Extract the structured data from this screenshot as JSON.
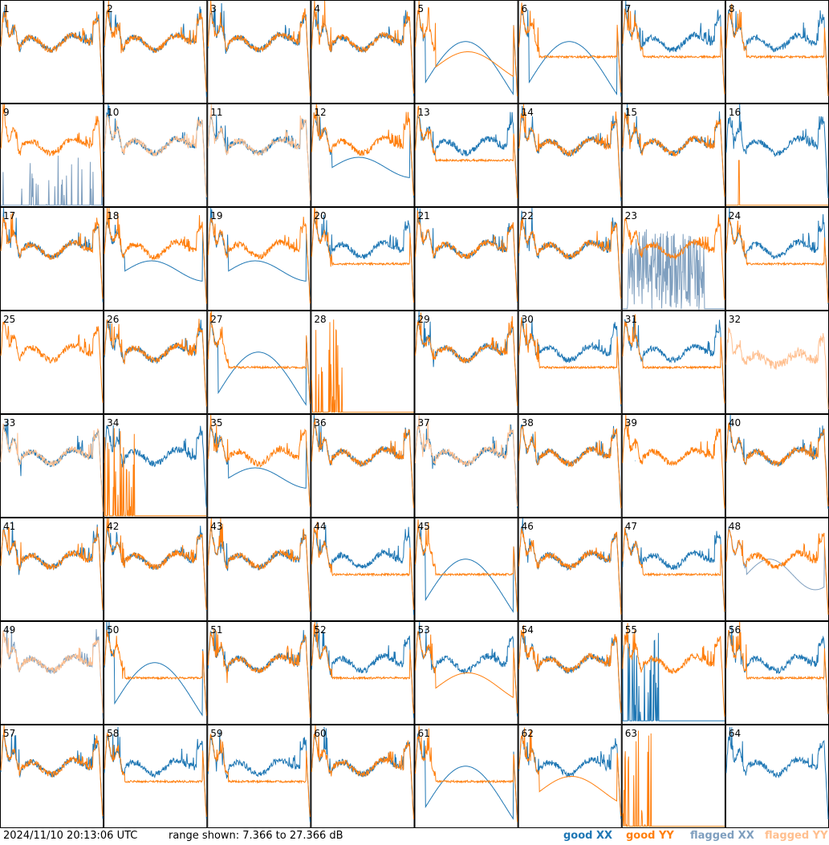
{
  "chart_data": {
    "type": "line",
    "title": "",
    "layout": {
      "rows": 8,
      "cols": 8
    },
    "panels": [
      {
        "n": "1",
        "xx": "good",
        "yy": "good",
        "profile": "spiky-flat-drop"
      },
      {
        "n": "2",
        "xx": "good",
        "yy": "good",
        "profile": "normal"
      },
      {
        "n": "3",
        "xx": "good",
        "yy": "good",
        "profile": "normal"
      },
      {
        "n": "4",
        "xx": "good",
        "yy": "good",
        "profile": "normal"
      },
      {
        "n": "5",
        "xx": "good",
        "yy": "good",
        "profile": "yy-low-xx-dip"
      },
      {
        "n": "6",
        "xx": "good",
        "yy": "good",
        "profile": "xx-dip-hump"
      },
      {
        "n": "7",
        "xx": "good",
        "yy": "good",
        "profile": "yy-below"
      },
      {
        "n": "8",
        "xx": "good",
        "yy": "good",
        "profile": "yy-below"
      },
      {
        "n": "9",
        "xx": "flagged",
        "yy": "good",
        "profile": "xx-flagged-low"
      },
      {
        "n": "10",
        "xx": "good",
        "yy": "flagged",
        "profile": "yy-flagged"
      },
      {
        "n": "11",
        "xx": "good",
        "yy": "flagged",
        "profile": "yy-flagged"
      },
      {
        "n": "12",
        "xx": "good",
        "yy": "good",
        "profile": "xx-below-drop"
      },
      {
        "n": "13",
        "xx": "good",
        "yy": "good",
        "profile": "yy-below"
      },
      {
        "n": "14",
        "xx": "good",
        "yy": "good",
        "profile": "normal"
      },
      {
        "n": "15",
        "xx": "good",
        "yy": "good",
        "profile": "normal"
      },
      {
        "n": "16",
        "xx": "good",
        "yy": "good",
        "profile": "yy-absent"
      },
      {
        "n": "17",
        "xx": "good",
        "yy": "good",
        "profile": "normal"
      },
      {
        "n": "18",
        "xx": "good",
        "yy": "good",
        "profile": "xx-below-drop"
      },
      {
        "n": "19",
        "xx": "good",
        "yy": "good",
        "profile": "xx-below-drop"
      },
      {
        "n": "20",
        "xx": "good",
        "yy": "good",
        "profile": "yy-below"
      },
      {
        "n": "21",
        "xx": "good",
        "yy": "good",
        "profile": "normal"
      },
      {
        "n": "22",
        "xx": "good",
        "yy": "good",
        "profile": "normal"
      },
      {
        "n": "23",
        "xx": "flagged",
        "yy": "good",
        "profile": "xx-flagged-noisy"
      },
      {
        "n": "24",
        "xx": "good",
        "yy": "good",
        "profile": "yy-below"
      },
      {
        "n": "25",
        "xx": "good",
        "yy": "good",
        "profile": "yy-only"
      },
      {
        "n": "26",
        "xx": "good",
        "yy": "good",
        "profile": "normal"
      },
      {
        "n": "27",
        "xx": "good",
        "yy": "good",
        "profile": "xx-dip-hump"
      },
      {
        "n": "28",
        "xx": "good",
        "yy": "good",
        "profile": "yy-spikes-only"
      },
      {
        "n": "29",
        "xx": "good",
        "yy": "good",
        "profile": "normal"
      },
      {
        "n": "30",
        "xx": "good",
        "yy": "good",
        "profile": "yy-below"
      },
      {
        "n": "31",
        "xx": "good",
        "yy": "good",
        "profile": "yy-below"
      },
      {
        "n": "32",
        "xx": "good",
        "yy": "flagged",
        "profile": "yy-flagged-only"
      },
      {
        "n": "33",
        "xx": "good",
        "yy": "flagged",
        "profile": "yy-flagged"
      },
      {
        "n": "34",
        "xx": "good",
        "yy": "good",
        "profile": "yy-low-spikes"
      },
      {
        "n": "35",
        "xx": "good",
        "yy": "good",
        "profile": "xx-below-drop"
      },
      {
        "n": "36",
        "xx": "good",
        "yy": "good",
        "profile": "normal"
      },
      {
        "n": "37",
        "xx": "good",
        "yy": "flagged",
        "profile": "yy-flagged"
      },
      {
        "n": "38",
        "xx": "good",
        "yy": "good",
        "profile": "normal"
      },
      {
        "n": "39",
        "xx": "good",
        "yy": "good",
        "profile": "xx-absent"
      },
      {
        "n": "40",
        "xx": "good",
        "yy": "good",
        "profile": "normal"
      },
      {
        "n": "41",
        "xx": "good",
        "yy": "good",
        "profile": "normal"
      },
      {
        "n": "42",
        "xx": "good",
        "yy": "good",
        "profile": "normal"
      },
      {
        "n": "43",
        "xx": "good",
        "yy": "good",
        "profile": "normal"
      },
      {
        "n": "44",
        "xx": "good",
        "yy": "good",
        "profile": "yy-below"
      },
      {
        "n": "45",
        "xx": "good",
        "yy": "good",
        "profile": "xx-dip-hump"
      },
      {
        "n": "46",
        "xx": "good",
        "yy": "good",
        "profile": "normal"
      },
      {
        "n": "47",
        "xx": "good",
        "yy": "good",
        "profile": "yy-below"
      },
      {
        "n": "48",
        "xx": "flagged",
        "yy": "good",
        "profile": "xx-flagged-dip"
      },
      {
        "n": "49",
        "xx": "flagged",
        "yy": "flagged",
        "profile": "both-flagged"
      },
      {
        "n": "50",
        "xx": "good",
        "yy": "good",
        "profile": "xx-dip-hump"
      },
      {
        "n": "51",
        "xx": "good",
        "yy": "good",
        "profile": "normal"
      },
      {
        "n": "52",
        "xx": "good",
        "yy": "good",
        "profile": "yy-below"
      },
      {
        "n": "53",
        "xx": "good",
        "yy": "good",
        "profile": "yy-dip"
      },
      {
        "n": "54",
        "xx": "good",
        "yy": "good",
        "profile": "normal"
      },
      {
        "n": "55",
        "xx": "good",
        "yy": "good",
        "profile": "xx-low-spikes"
      },
      {
        "n": "56",
        "xx": "good",
        "yy": "good",
        "profile": "yy-below"
      },
      {
        "n": "57",
        "xx": "good",
        "yy": "good",
        "profile": "normal"
      },
      {
        "n": "58",
        "xx": "good",
        "yy": "good",
        "profile": "yy-below"
      },
      {
        "n": "59",
        "xx": "good",
        "yy": "good",
        "profile": "yy-below"
      },
      {
        "n": "60",
        "xx": "good",
        "yy": "good",
        "profile": "normal"
      },
      {
        "n": "61",
        "xx": "good",
        "yy": "good",
        "profile": "xx-dip-hump"
      },
      {
        "n": "62",
        "xx": "good",
        "yy": "good",
        "profile": "yy-dip"
      },
      {
        "n": "63",
        "xx": "good",
        "yy": "good",
        "profile": "yy-spikes-only"
      },
      {
        "n": "64",
        "xx": "good",
        "yy": "good",
        "profile": "xx-only"
      }
    ],
    "range_db": [
      7.366,
      27.366
    ],
    "legend": [
      "good XX",
      "good YY",
      "flagged XX",
      "flagged YY"
    ],
    "colors": {
      "good_xx": "#1f77b4",
      "good_yy": "#ff7f0e",
      "flagged_xx": "#7f9fbf",
      "flagged_yy": "#ffbf8f"
    }
  },
  "footer": {
    "timestamp": "2024/11/10 20:13:06 UTC",
    "range": "range shown: 7.366 to 27.366 dB",
    "legend_good_xx": "good XX",
    "legend_good_yy": "good YY",
    "legend_flagged_xx": "flagged XX",
    "legend_flagged_yy": "flagged YY"
  }
}
